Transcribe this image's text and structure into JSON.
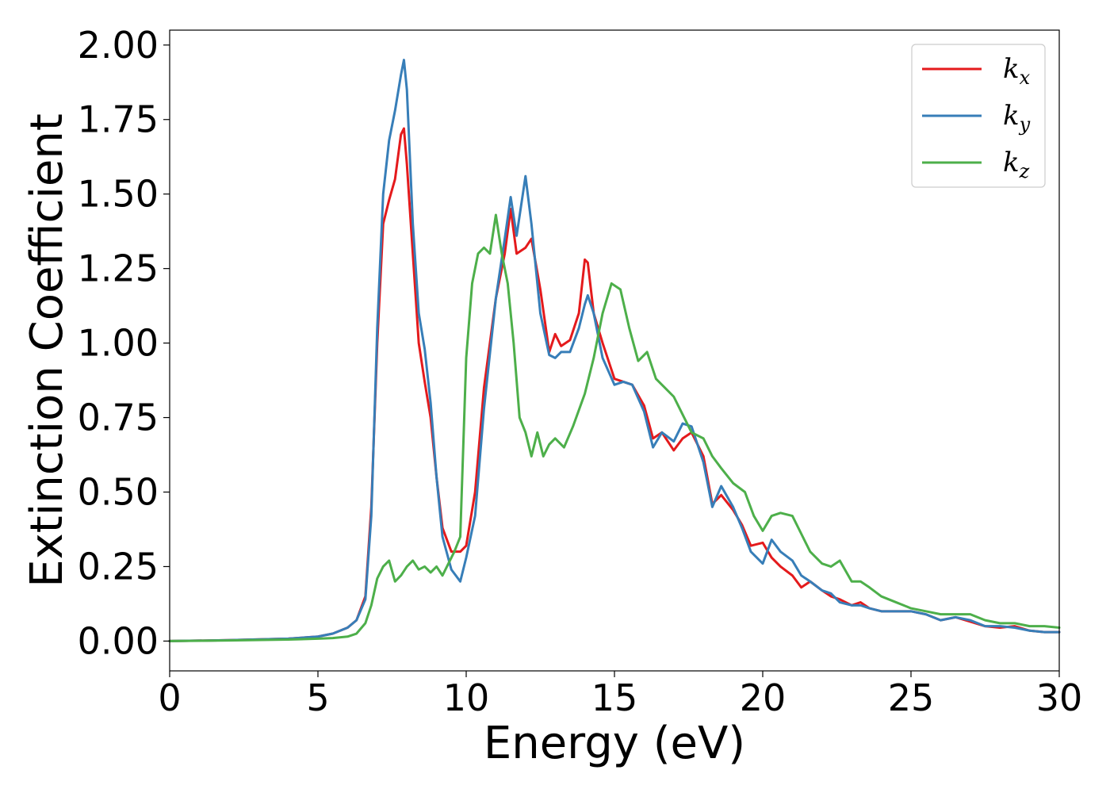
{
  "chart_data": {
    "type": "line",
    "xlabel": "Energy (eV)",
    "ylabel": "Extinction Coefficient",
    "xlim": [
      0,
      30
    ],
    "ylim": [
      -0.1,
      2.05
    ],
    "xticks": [
      0,
      5,
      10,
      15,
      20,
      25,
      30
    ],
    "yticks": [
      0.0,
      0.25,
      0.5,
      0.75,
      1.0,
      1.25,
      1.5,
      1.75,
      2.0
    ],
    "xtick_labels": [
      "0",
      "5",
      "10",
      "15",
      "20",
      "25",
      "30"
    ],
    "ytick_labels": [
      "0.00",
      "0.25",
      "0.50",
      "0.75",
      "1.00",
      "1.25",
      "1.50",
      "1.75",
      "2.00"
    ],
    "grid": false,
    "legend_position": "top-right",
    "series": [
      {
        "name": "k",
        "subscript": "x",
        "color": "#e41a1c",
        "x": [
          0,
          2,
          4,
          5,
          5.5,
          6,
          6.3,
          6.6,
          6.8,
          7.0,
          7.2,
          7.4,
          7.6,
          7.8,
          7.9,
          8.0,
          8.2,
          8.4,
          8.6,
          8.8,
          9.0,
          9.2,
          9.5,
          9.8,
          10.0,
          10.3,
          10.6,
          11.0,
          11.3,
          11.5,
          11.7,
          12.0,
          12.2,
          12.5,
          12.8,
          13.0,
          13.2,
          13.5,
          13.8,
          14.0,
          14.1,
          14.3,
          14.6,
          15.0,
          15.3,
          15.6,
          16.0,
          16.3,
          16.6,
          17.0,
          17.3,
          17.6,
          18.0,
          18.3,
          18.6,
          19.0,
          19.3,
          19.6,
          20.0,
          20.3,
          20.6,
          21.0,
          21.3,
          21.6,
          22.0,
          22.3,
          22.6,
          23.0,
          23.3,
          23.6,
          24.0,
          24.5,
          25.0,
          25.5,
          26.0,
          26.5,
          27.0,
          27.5,
          28.0,
          28.5,
          29.0,
          29.5,
          30.0
        ],
        "values": [
          0.0,
          0.003,
          0.008,
          0.015,
          0.025,
          0.045,
          0.07,
          0.15,
          0.45,
          1.0,
          1.4,
          1.48,
          1.55,
          1.7,
          1.72,
          1.6,
          1.3,
          1.0,
          0.87,
          0.75,
          0.55,
          0.38,
          0.3,
          0.3,
          0.32,
          0.5,
          0.85,
          1.15,
          1.3,
          1.45,
          1.3,
          1.32,
          1.35,
          1.18,
          0.97,
          1.03,
          0.99,
          1.01,
          1.1,
          1.28,
          1.27,
          1.1,
          1.0,
          0.88,
          0.87,
          0.86,
          0.79,
          0.68,
          0.7,
          0.64,
          0.68,
          0.7,
          0.62,
          0.46,
          0.49,
          0.44,
          0.39,
          0.32,
          0.33,
          0.28,
          0.25,
          0.22,
          0.18,
          0.2,
          0.17,
          0.15,
          0.14,
          0.12,
          0.13,
          0.11,
          0.1,
          0.1,
          0.1,
          0.09,
          0.07,
          0.08,
          0.065,
          0.05,
          0.045,
          0.05,
          0.035,
          0.03,
          0.03
        ]
      },
      {
        "name": "k",
        "subscript": "y",
        "color": "#377eb8",
        "x": [
          0,
          2,
          4,
          5,
          5.5,
          6,
          6.3,
          6.6,
          6.8,
          7.0,
          7.2,
          7.4,
          7.6,
          7.8,
          7.9,
          8.0,
          8.2,
          8.4,
          8.6,
          8.8,
          9.0,
          9.2,
          9.5,
          9.8,
          10.0,
          10.3,
          10.6,
          11.0,
          11.3,
          11.5,
          11.7,
          12.0,
          12.2,
          12.5,
          12.8,
          13.0,
          13.2,
          13.5,
          13.8,
          14.0,
          14.1,
          14.3,
          14.6,
          15.0,
          15.3,
          15.6,
          16.0,
          16.3,
          16.6,
          17.0,
          17.3,
          17.6,
          18.0,
          18.3,
          18.6,
          19.0,
          19.3,
          19.6,
          20.0,
          20.3,
          20.6,
          21.0,
          21.3,
          21.6,
          22.0,
          22.3,
          22.6,
          23.0,
          23.3,
          23.6,
          24.0,
          24.5,
          25.0,
          25.5,
          26.0,
          26.5,
          27.0,
          27.5,
          28.0,
          28.5,
          29.0,
          29.5,
          30.0
        ],
        "values": [
          0.0,
          0.003,
          0.008,
          0.015,
          0.025,
          0.045,
          0.07,
          0.14,
          0.42,
          1.05,
          1.5,
          1.68,
          1.78,
          1.9,
          1.95,
          1.85,
          1.4,
          1.1,
          0.98,
          0.8,
          0.55,
          0.35,
          0.24,
          0.2,
          0.28,
          0.42,
          0.78,
          1.15,
          1.35,
          1.49,
          1.36,
          1.56,
          1.4,
          1.1,
          0.96,
          0.95,
          0.97,
          0.97,
          1.05,
          1.13,
          1.16,
          1.1,
          0.95,
          0.86,
          0.87,
          0.86,
          0.77,
          0.65,
          0.7,
          0.67,
          0.73,
          0.72,
          0.6,
          0.45,
          0.52,
          0.45,
          0.38,
          0.3,
          0.26,
          0.34,
          0.3,
          0.27,
          0.22,
          0.2,
          0.17,
          0.16,
          0.13,
          0.12,
          0.12,
          0.11,
          0.1,
          0.1,
          0.1,
          0.09,
          0.07,
          0.08,
          0.07,
          0.05,
          0.05,
          0.045,
          0.035,
          0.03,
          0.03
        ]
      },
      {
        "name": "k",
        "subscript": "z",
        "color": "#4daf4a",
        "x": [
          0,
          2,
          4,
          5,
          5.5,
          6,
          6.3,
          6.6,
          6.8,
          7.0,
          7.2,
          7.4,
          7.6,
          7.8,
          8.0,
          8.2,
          8.4,
          8.6,
          8.8,
          9.0,
          9.2,
          9.4,
          9.6,
          9.8,
          10.0,
          10.2,
          10.4,
          10.6,
          10.8,
          11.0,
          11.2,
          11.4,
          11.6,
          11.8,
          12.0,
          12.2,
          12.4,
          12.6,
          12.8,
          13.0,
          13.3,
          13.6,
          14.0,
          14.3,
          14.6,
          14.9,
          15.2,
          15.5,
          15.8,
          16.1,
          16.4,
          16.7,
          17.0,
          17.3,
          17.6,
          18.0,
          18.3,
          18.6,
          19.0,
          19.4,
          19.7,
          20.0,
          20.3,
          20.6,
          21.0,
          21.3,
          21.6,
          22.0,
          22.3,
          22.6,
          23.0,
          23.3,
          23.6,
          24.0,
          24.5,
          25.0,
          25.5,
          26.0,
          26.5,
          27.0,
          27.5,
          28.0,
          28.5,
          29.0,
          29.5,
          30.0
        ],
        "values": [
          0.0,
          0.002,
          0.005,
          0.008,
          0.01,
          0.015,
          0.025,
          0.06,
          0.12,
          0.21,
          0.25,
          0.27,
          0.2,
          0.22,
          0.25,
          0.27,
          0.24,
          0.25,
          0.23,
          0.25,
          0.22,
          0.26,
          0.3,
          0.35,
          0.95,
          1.2,
          1.3,
          1.32,
          1.3,
          1.43,
          1.3,
          1.2,
          1.0,
          0.75,
          0.7,
          0.62,
          0.7,
          0.62,
          0.66,
          0.68,
          0.65,
          0.72,
          0.83,
          0.95,
          1.1,
          1.2,
          1.18,
          1.05,
          0.94,
          0.97,
          0.88,
          0.85,
          0.82,
          0.76,
          0.7,
          0.68,
          0.62,
          0.58,
          0.53,
          0.5,
          0.42,
          0.37,
          0.42,
          0.43,
          0.42,
          0.36,
          0.3,
          0.26,
          0.25,
          0.27,
          0.2,
          0.2,
          0.18,
          0.15,
          0.13,
          0.11,
          0.1,
          0.09,
          0.09,
          0.09,
          0.07,
          0.06,
          0.06,
          0.05,
          0.05,
          0.045
        ]
      }
    ]
  }
}
